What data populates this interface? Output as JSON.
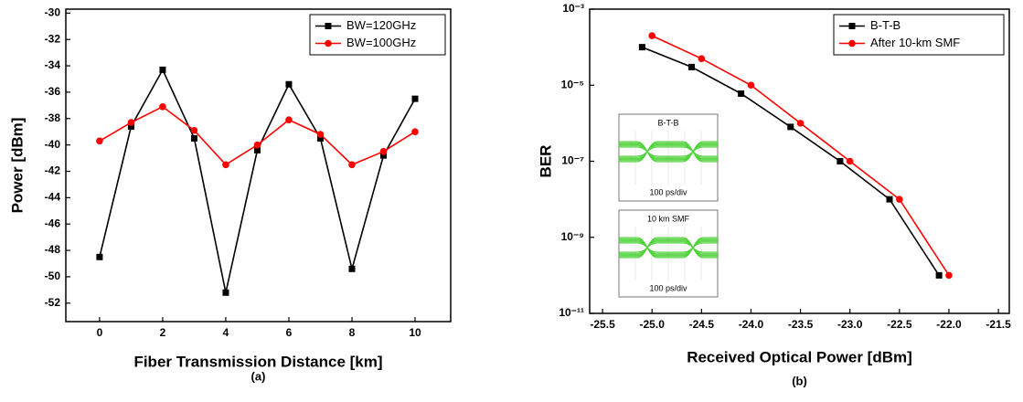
{
  "chart_data": [
    {
      "type": "line",
      "xlabel": "Fiber Transmission Distance [km]",
      "ylabel": "Power [dBm]",
      "caption": "(a)",
      "x": [
        0,
        1,
        2,
        3,
        4,
        5,
        6,
        7,
        8,
        9,
        10
      ],
      "series": [
        {
          "name": "BW=120GHz",
          "color": "#000000",
          "marker": "square",
          "values": [
            -48.5,
            -38.6,
            -34.3,
            -39.5,
            -51.2,
            -40.4,
            -35.4,
            -39.5,
            -49.4,
            -40.8,
            -36.5
          ]
        },
        {
          "name": "BW=100GHz",
          "color": "#ff0000",
          "marker": "circle",
          "values": [
            -39.7,
            -38.3,
            -37.1,
            -38.9,
            -41.5,
            -40.0,
            -38.1,
            -39.2,
            -41.5,
            -40.5,
            -39.0
          ]
        }
      ],
      "xlim": [
        -1.07,
        11.13
      ],
      "xticks": [
        0,
        2,
        4,
        6,
        8,
        10
      ],
      "ylim": [
        -53.4,
        -29.7
      ],
      "yticks": [
        -30,
        -32,
        -34,
        -36,
        -38,
        -40,
        -42,
        -44,
        -46,
        -48,
        -50,
        -52
      ],
      "legend": "upper right",
      "grid": false
    },
    {
      "type": "line",
      "xlabel": "Received Optical Power [dBm]",
      "ylabel": "BER",
      "caption": "(b)",
      "log_y": true,
      "series": [
        {
          "name": "B-T-B",
          "color": "#000000",
          "marker": "square",
          "x": [
            -25.1,
            -24.6,
            -24.1,
            -23.6,
            -23.1,
            -22.6,
            -22.1
          ],
          "values": [
            0.0001,
            3e-05,
            6e-06,
            8e-07,
            1e-07,
            1e-08,
            1e-10
          ]
        },
        {
          "name": "After 10-km SMF",
          "color": "#ff0000",
          "marker": "circle",
          "x": [
            -25.0,
            -24.5,
            -24.0,
            -23.5,
            -23.0,
            -22.5,
            -22.0
          ],
          "values": [
            0.0002,
            5e-05,
            1e-05,
            1e-06,
            1e-07,
            1e-08,
            1e-10
          ]
        }
      ],
      "xlim": [
        -25.63,
        -21.39
      ],
      "xticks": [
        -25.5,
        {
          "value": -25,
          "label": "-25.0"
        },
        -24.5,
        {
          "value": -24,
          "label": "-24.0"
        },
        -23.5,
        {
          "value": -23,
          "label": "-23.0"
        },
        -22.5,
        {
          "value": -22,
          "label": "-22.0"
        },
        -21.5
      ],
      "ylim": [
        1e-11,
        0.001
      ],
      "yticks": [
        {
          "value": 0.001,
          "label": "10⁻³"
        },
        {
          "value": 1e-05,
          "label": "10⁻⁵"
        },
        {
          "value": 1e-07,
          "label": "10⁻⁷"
        },
        {
          "value": 1e-09,
          "label": "10⁻⁹"
        },
        {
          "value": 1e-11,
          "label": "10⁻¹¹"
        }
      ],
      "insets": [
        {
          "title": "B-T-B",
          "scale": "100 ps/div"
        },
        {
          "title": "10 km SMF",
          "scale": "100 ps/div"
        }
      ],
      "legend": "upper right",
      "grid": false
    }
  ]
}
